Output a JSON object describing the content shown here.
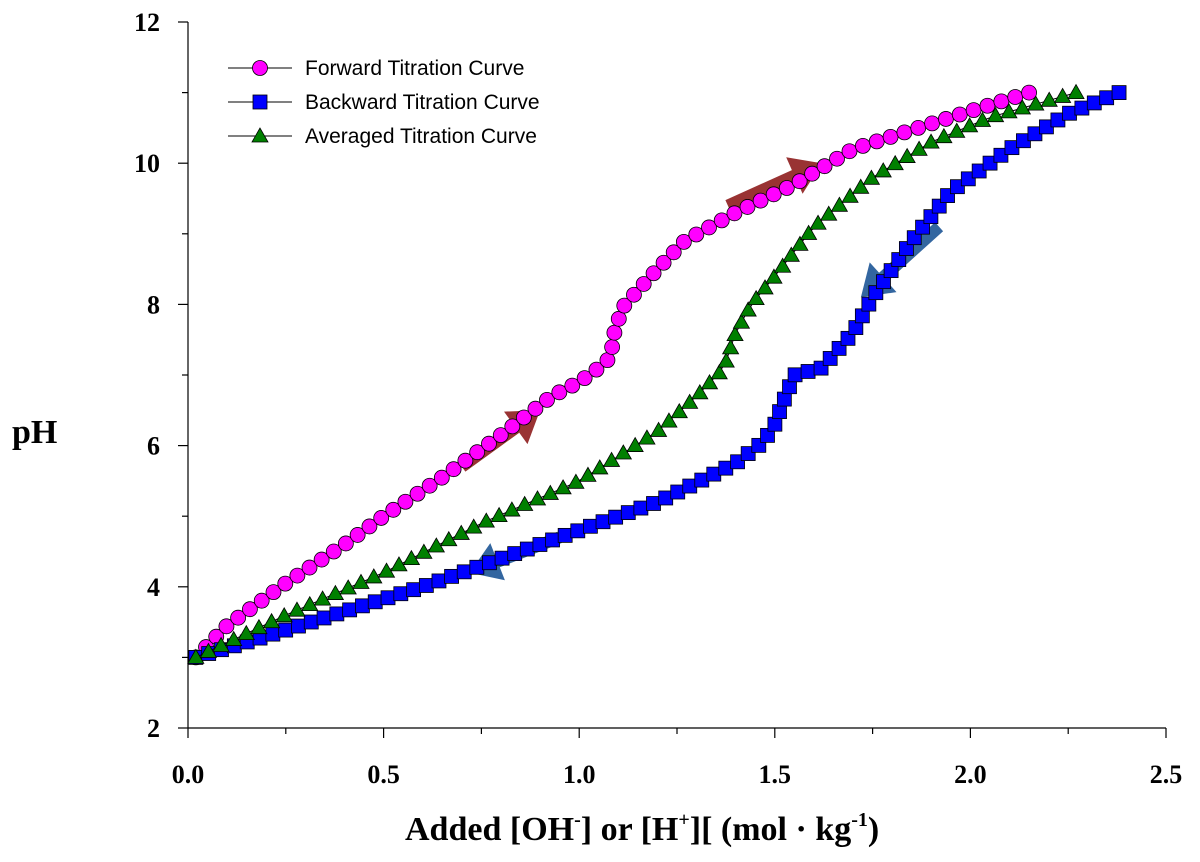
{
  "chart_data": {
    "type": "scatter",
    "title": "",
    "ylabel": "pH",
    "xlabel": {
      "prefix": "Added [OH",
      "sup1": "-",
      "middle": "] or [H",
      "sup2": "+",
      "suffix": "][ (mol · kg",
      "sup3": "-1",
      "end": ")"
    },
    "xlim": [
      0,
      2.5
    ],
    "ylim": [
      2,
      12
    ],
    "xticks": [
      "0.0",
      "0.5",
      "1.0",
      "1.5",
      "2.0",
      "2.5"
    ],
    "yticks": [
      "2",
      "4",
      "6",
      "8",
      "10",
      "12"
    ],
    "legend_position": "top-left",
    "series": [
      {
        "name": "Forward Titration Curve",
        "marker": "circle",
        "color": "#ff00ff",
        "anchors": [
          [
            0.02,
            3.0
          ],
          [
            0.1,
            3.45
          ],
          [
            0.25,
            4.05
          ],
          [
            0.4,
            4.6
          ],
          [
            0.5,
            5.0
          ],
          [
            0.65,
            5.55
          ],
          [
            0.8,
            6.15
          ],
          [
            0.93,
            6.7
          ],
          [
            1.0,
            6.9
          ],
          [
            1.05,
            7.1
          ],
          [
            1.08,
            7.25
          ],
          [
            1.09,
            7.6
          ],
          [
            1.11,
            7.95
          ],
          [
            1.15,
            8.2
          ],
          [
            1.2,
            8.5
          ],
          [
            1.27,
            8.9
          ],
          [
            1.4,
            9.3
          ],
          [
            1.55,
            9.7
          ],
          [
            1.7,
            10.2
          ],
          [
            1.95,
            10.65
          ],
          [
            2.15,
            11.0
          ]
        ],
        "n": 72
      },
      {
        "name": "Backward Titration Curve",
        "marker": "square",
        "color": "#0000ff",
        "anchors": [
          [
            0.02,
            3.0
          ],
          [
            0.2,
            3.3
          ],
          [
            0.4,
            3.65
          ],
          [
            0.6,
            4.0
          ],
          [
            0.8,
            4.4
          ],
          [
            1.0,
            4.8
          ],
          [
            1.2,
            5.2
          ],
          [
            1.4,
            5.75
          ],
          [
            1.47,
            6.05
          ],
          [
            1.5,
            6.3
          ],
          [
            1.52,
            6.6
          ],
          [
            1.55,
            7.0
          ],
          [
            1.62,
            7.1
          ],
          [
            1.7,
            7.6
          ],
          [
            1.75,
            8.1
          ],
          [
            1.85,
            8.9
          ],
          [
            1.95,
            9.6
          ],
          [
            2.1,
            10.2
          ],
          [
            2.25,
            10.7
          ],
          [
            2.38,
            11.0
          ]
        ],
        "n": 85
      },
      {
        "name": "Averaged Titration Curve",
        "marker": "triangle",
        "color": "#008000",
        "anchors": [
          [
            0.02,
            3.0
          ],
          [
            0.25,
            3.6
          ],
          [
            0.5,
            4.2
          ],
          [
            0.75,
            4.9
          ],
          [
            1.0,
            5.5
          ],
          [
            1.2,
            6.2
          ],
          [
            1.3,
            6.7
          ],
          [
            1.37,
            7.1
          ],
          [
            1.4,
            7.6
          ],
          [
            1.44,
            8.0
          ],
          [
            1.5,
            8.4
          ],
          [
            1.6,
            9.1
          ],
          [
            1.75,
            9.8
          ],
          [
            1.9,
            10.3
          ],
          [
            2.05,
            10.65
          ],
          [
            2.27,
            11.0
          ]
        ],
        "n": 78
      }
    ],
    "arrows": [
      {
        "from": [
          0.7,
          5.7
        ],
        "to": [
          0.9,
          6.5
        ],
        "color": "#993333"
      },
      {
        "from": [
          1.38,
          9.4
        ],
        "to": [
          1.62,
          10.0
        ],
        "color": "#993333"
      },
      {
        "from": [
          1.92,
          9.1
        ],
        "to": [
          1.72,
          8.1
        ],
        "color": "#3366a0"
      },
      {
        "from": [
          0.95,
          4.7
        ],
        "to": [
          0.72,
          4.2
        ],
        "color": "#3366a0"
      }
    ]
  }
}
